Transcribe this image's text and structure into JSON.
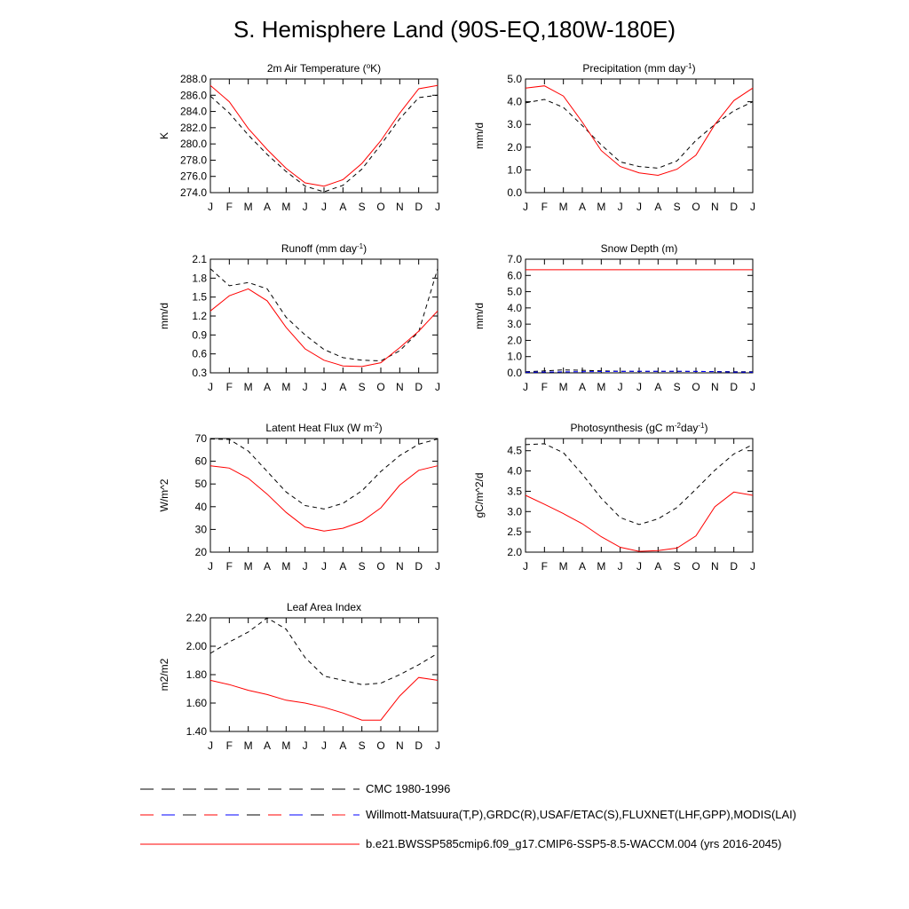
{
  "page": {
    "title": "S. Hemisphere Land (90S-EQ,180W-180E)"
  },
  "legend": {
    "items": [
      {
        "label": "CMC 1980-1996",
        "style": "dash-black"
      },
      {
        "label": "Willmott-Matsuura(T,P),GRDC(R),USAF/ETAC(S),FLUXNET(LHF,GPP),MODIS(LAI)",
        "style": "dash-red-blue"
      },
      {
        "label": "b.e21.BWSSP585cmip6.f09_g17.CMIP6-SSP5-8.5-WACCM.004 (yrs 2016-2045)",
        "style": "solid-red"
      }
    ]
  },
  "colors": {
    "model": "#ff0000",
    "obs": "#000000",
    "obs_alt": "#0000ff"
  },
  "chart_data": [
    {
      "type": "line",
      "title": "2m Air Temperature (°K)",
      "ylabel": "K",
      "months": [
        "J",
        "F",
        "M",
        "A",
        "M",
        "J",
        "J",
        "A",
        "S",
        "O",
        "N",
        "D",
        "J"
      ],
      "ylim": [
        274,
        288
      ],
      "yticks": [
        "274.0",
        "276.0",
        "278.0",
        "280.0",
        "282.0",
        "284.0",
        "286.0",
        "288.0"
      ],
      "series": [
        {
          "name": "obs",
          "style": "dash-black",
          "values": [
            285.9,
            283.8,
            281.1,
            278.7,
            276.6,
            274.8,
            274.1,
            274.9,
            276.9,
            279.9,
            283.1,
            285.7,
            286.0
          ]
        },
        {
          "name": "model",
          "style": "solid-red",
          "values": [
            287.2,
            285.2,
            281.9,
            279.3,
            277.0,
            275.2,
            274.8,
            275.6,
            277.6,
            280.4,
            283.8,
            286.8,
            287.2
          ]
        }
      ]
    },
    {
      "type": "line",
      "title": "Precipitation (mm day⁻¹)",
      "ylabel": "mm/d",
      "months": [
        "J",
        "F",
        "M",
        "A",
        "M",
        "J",
        "J",
        "A",
        "S",
        "O",
        "N",
        "D",
        "J"
      ],
      "ylim": [
        0,
        5
      ],
      "yticks": [
        "0.0",
        "1.0",
        "2.0",
        "3.0",
        "4.0",
        "5.0"
      ],
      "series": [
        {
          "name": "obs",
          "style": "dash-black",
          "values": [
            3.95,
            4.1,
            3.75,
            2.95,
            2.1,
            1.35,
            1.15,
            1.08,
            1.4,
            2.3,
            3.0,
            3.6,
            4.0
          ]
        },
        {
          "name": "model",
          "style": "solid-red",
          "values": [
            4.6,
            4.7,
            4.25,
            3.1,
            1.85,
            1.15,
            0.87,
            0.76,
            1.03,
            1.65,
            3.0,
            4.05,
            4.6
          ]
        }
      ]
    },
    {
      "type": "line",
      "title": "Runoff (mm day⁻¹)",
      "ylabel": "mm/d",
      "months": [
        "J",
        "F",
        "M",
        "A",
        "M",
        "J",
        "J",
        "A",
        "S",
        "O",
        "N",
        "D",
        "J"
      ],
      "ylim": [
        0.3,
        2.1
      ],
      "yticks": [
        "0.3",
        "0.6",
        "0.9",
        "1.2",
        "1.5",
        "1.8",
        "2.1"
      ],
      "series": [
        {
          "name": "obs",
          "style": "dash-black",
          "values": [
            1.95,
            1.68,
            1.73,
            1.63,
            1.18,
            0.9,
            0.67,
            0.54,
            0.5,
            0.49,
            0.65,
            0.95,
            1.95
          ]
        },
        {
          "name": "model",
          "style": "solid-red",
          "values": [
            1.28,
            1.52,
            1.63,
            1.44,
            1.02,
            0.68,
            0.5,
            0.41,
            0.4,
            0.46,
            0.7,
            0.96,
            1.28
          ]
        }
      ]
    },
    {
      "type": "line",
      "title": "Snow Depth (m)",
      "ylabel": "mm/d",
      "months": [
        "J",
        "F",
        "M",
        "A",
        "M",
        "J",
        "J",
        "A",
        "S",
        "O",
        "N",
        "D",
        "J"
      ],
      "ylim": [
        0,
        7
      ],
      "yticks": [
        "0.0",
        "1.0",
        "2.0",
        "3.0",
        "4.0",
        "5.0",
        "6.0",
        "7.0"
      ],
      "series": [
        {
          "name": "obs",
          "style": "dash-black",
          "values": [
            0.07,
            0.12,
            0.18,
            0.16,
            0.12,
            0.1,
            0.09,
            0.09,
            0.09,
            0.09,
            0.08,
            0.07,
            0.07
          ]
        },
        {
          "name": "obs_alt",
          "style": "dash-blue",
          "values": [
            0.04,
            0.05,
            0.06,
            0.07,
            0.08,
            0.09,
            0.1,
            0.1,
            0.1,
            0.09,
            0.07,
            0.05,
            0.04
          ]
        },
        {
          "name": "model",
          "style": "solid-red",
          "values": [
            6.35,
            6.35,
            6.35,
            6.35,
            6.35,
            6.35,
            6.35,
            6.35,
            6.35,
            6.35,
            6.35,
            6.35,
            6.35
          ]
        }
      ]
    },
    {
      "type": "line",
      "title": "Latent Heat Flux (W m⁻²)",
      "ylabel": "W/m^2",
      "months": [
        "J",
        "F",
        "M",
        "A",
        "M",
        "J",
        "J",
        "A",
        "S",
        "O",
        "N",
        "D",
        "J"
      ],
      "ylim": [
        20,
        70
      ],
      "yticks": [
        "20",
        "30",
        "40",
        "50",
        "60",
        "70"
      ],
      "series": [
        {
          "name": "obs",
          "style": "dash-black",
          "values": [
            69.8,
            69.6,
            64.5,
            55.5,
            46.5,
            40.5,
            39.0,
            41.5,
            47.0,
            55.5,
            62.5,
            67.5,
            69.8
          ]
        },
        {
          "name": "model",
          "style": "solid-red",
          "values": [
            58.0,
            57.0,
            52.5,
            45.5,
            37.5,
            31.0,
            29.3,
            30.5,
            33.5,
            39.5,
            49.5,
            56.0,
            58.0
          ]
        }
      ]
    },
    {
      "type": "line",
      "title": "Photosynthesis (gC m⁻²day⁻¹)",
      "ylabel": "gC/m^2/d",
      "months": [
        "J",
        "F",
        "M",
        "A",
        "M",
        "J",
        "J",
        "A",
        "S",
        "O",
        "N",
        "D",
        "J"
      ],
      "ylim": [
        2.0,
        4.8
      ],
      "yticks": [
        "2.0",
        "2.5",
        "3.0",
        "3.5",
        "4.0",
        "4.5"
      ],
      "series": [
        {
          "name": "obs",
          "style": "dash-black",
          "values": [
            4.65,
            4.67,
            4.45,
            3.92,
            3.33,
            2.85,
            2.68,
            2.82,
            3.1,
            3.55,
            4.02,
            4.42,
            4.65
          ]
        },
        {
          "name": "model",
          "style": "solid-red",
          "values": [
            3.4,
            3.18,
            2.95,
            2.7,
            2.38,
            2.12,
            2.02,
            2.04,
            2.1,
            2.4,
            3.12,
            3.48,
            3.4
          ]
        }
      ]
    },
    {
      "type": "line",
      "title": "Leaf Area Index",
      "ylabel": "m2/m2",
      "months": [
        "J",
        "F",
        "M",
        "A",
        "M",
        "J",
        "J",
        "A",
        "S",
        "O",
        "N",
        "D",
        "J"
      ],
      "ylim": [
        1.4,
        2.2
      ],
      "yticks": [
        "1.40",
        "1.60",
        "1.80",
        "2.00",
        "2.20"
      ],
      "series": [
        {
          "name": "obs",
          "style": "dash-black",
          "values": [
            1.95,
            2.03,
            2.1,
            2.2,
            2.12,
            1.92,
            1.79,
            1.76,
            1.73,
            1.74,
            1.8,
            1.87,
            1.95
          ]
        },
        {
          "name": "model",
          "style": "solid-red",
          "values": [
            1.76,
            1.73,
            1.69,
            1.66,
            1.62,
            1.6,
            1.57,
            1.53,
            1.48,
            1.48,
            1.65,
            1.78,
            1.76
          ]
        }
      ]
    }
  ]
}
